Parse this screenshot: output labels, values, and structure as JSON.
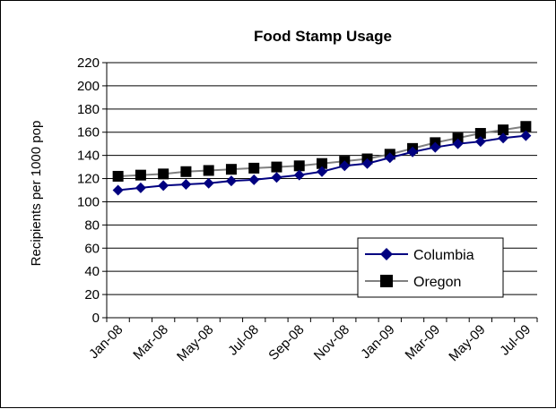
{
  "chart_data": {
    "type": "line",
    "title": "Food Stamp Usage",
    "xlabel": "",
    "ylabel": "Recipients per 1000 pop",
    "ylim": [
      0,
      220
    ],
    "y_ticks": [
      0,
      20,
      40,
      60,
      80,
      100,
      120,
      140,
      160,
      180,
      200,
      220
    ],
    "grid": "horizontal",
    "legend_position": "bottom-right",
    "x": [
      "Jan-08",
      "Feb-08",
      "Mar-08",
      "Apr-08",
      "May-08",
      "Jun-08",
      "Jul-08",
      "Aug-08",
      "Sep-08",
      "Oct-08",
      "Nov-08",
      "Dec-08",
      "Jan-09",
      "Feb-09",
      "Mar-09",
      "Apr-09",
      "May-09",
      "Jun-09",
      "Jul-09"
    ],
    "x_tick_labels": [
      "Jan-08",
      "Mar-08",
      "May-08",
      "Jul-08",
      "Sep-08",
      "Nov-08",
      "Jan-09",
      "Mar-09",
      "May-09",
      "Jul-09"
    ],
    "series": [
      {
        "name": "Columbia",
        "color": "#000080",
        "marker": "diamond",
        "values": [
          110,
          112,
          114,
          115,
          116,
          118,
          119,
          121,
          123,
          126,
          131,
          133,
          138,
          143,
          147,
          150,
          152,
          155,
          157
        ]
      },
      {
        "name": "Oregon",
        "color": "#808080",
        "marker_color": "#000000",
        "marker": "square",
        "values": [
          122,
          123,
          124,
          126,
          127,
          128,
          129,
          130,
          131,
          133,
          135,
          137,
          141,
          146,
          151,
          155,
          159,
          162,
          165
        ]
      }
    ]
  }
}
